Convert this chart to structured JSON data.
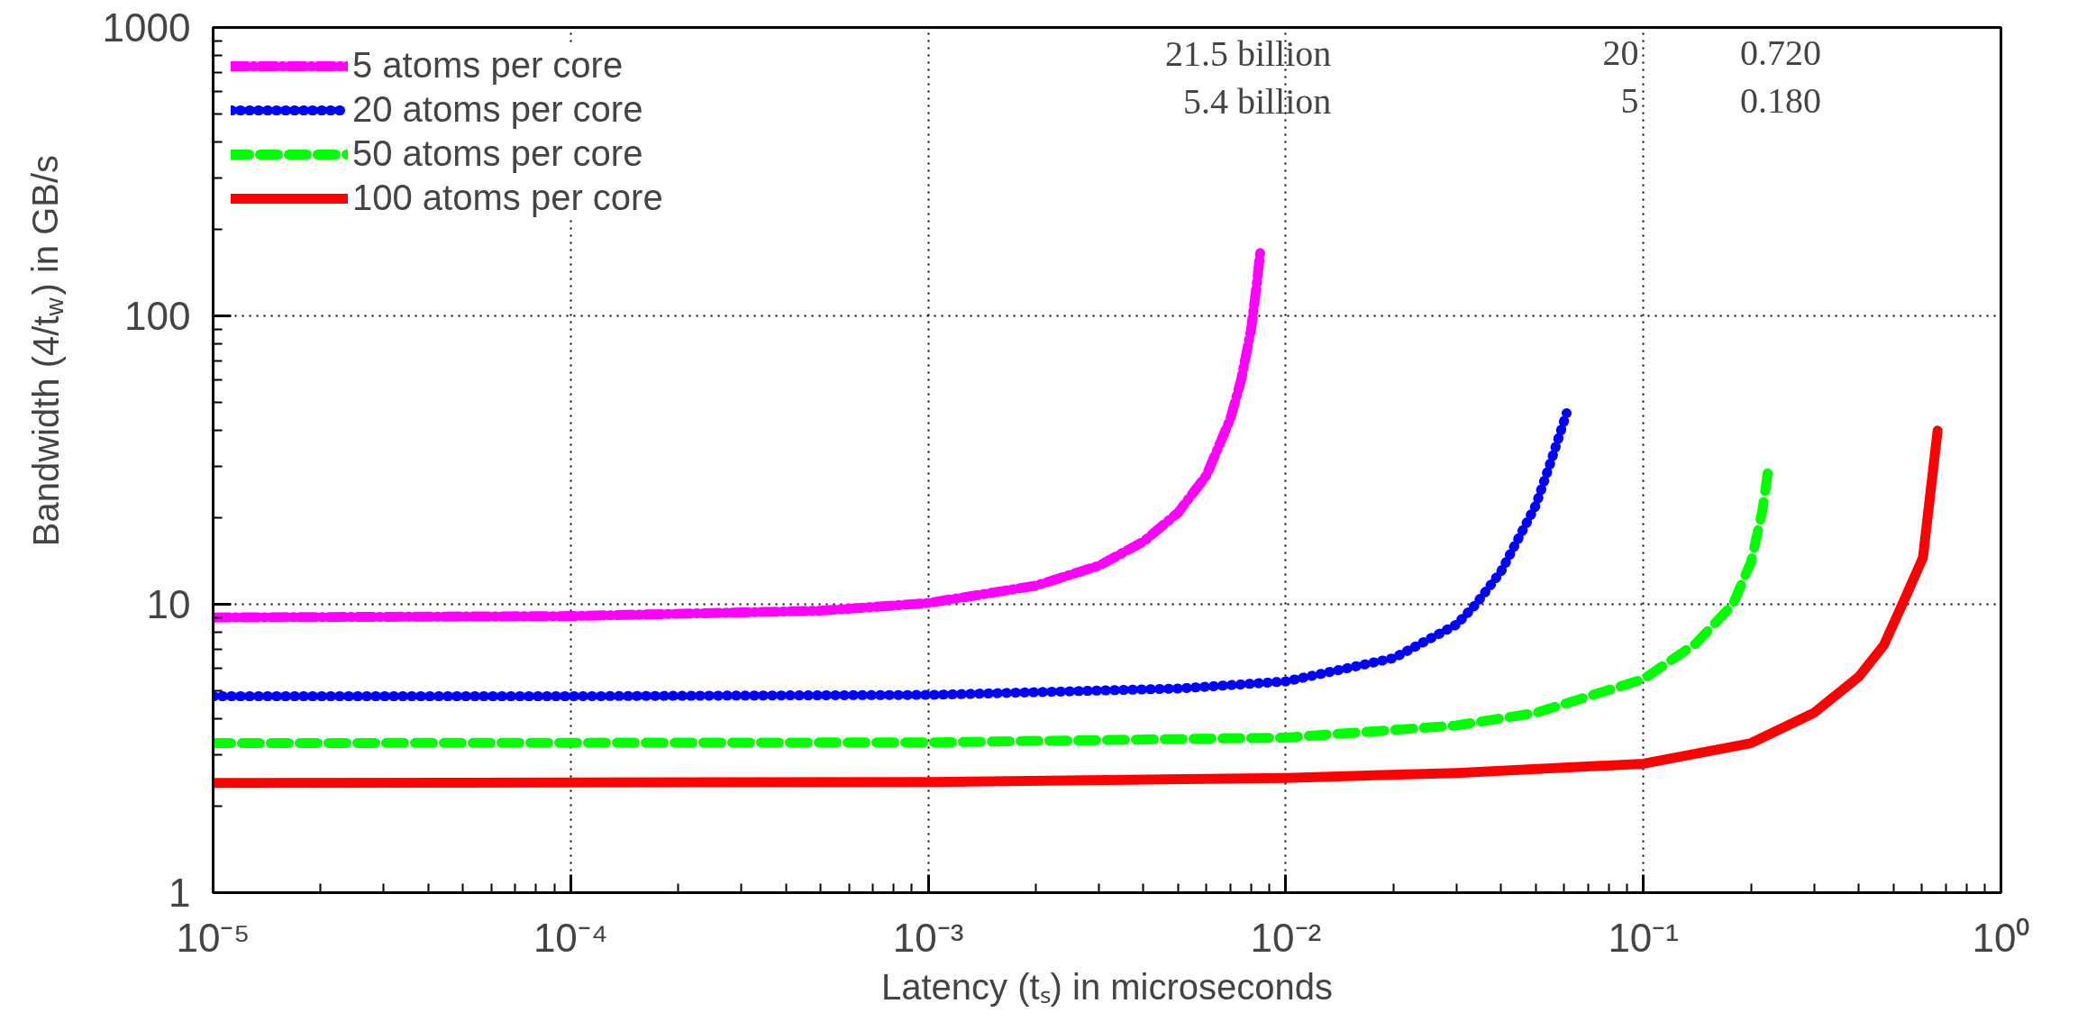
{
  "chart_data": {
    "type": "line",
    "xlabel": "Latency (tₛ) in microseconds",
    "ylabel": "Bandwidth (4/t$_{w}$) in GB/s",
    "log": "xy",
    "xlim": [
      1e-05,
      1
    ],
    "ylim": [
      1,
      1000
    ],
    "xticks": [
      {
        "value": 1e-05,
        "label": "10⁻⁵"
      },
      {
        "value": 0.0001,
        "label": "10⁻⁴"
      },
      {
        "value": 0.001,
        "label": "10⁻³"
      },
      {
        "value": 0.01,
        "label": "10⁻²"
      },
      {
        "value": 0.1,
        "label": "10⁻¹"
      },
      {
        "value": 1,
        "label": "10⁰"
      }
    ],
    "yticks": [
      1,
      10,
      100,
      1000
    ],
    "grid": true,
    "legend": "top left",
    "marker": "none",
    "annotations": [
      "21.5 billion",
      "20",
      "0.720",
      "5.4 billion",
      "5",
      "0.180"
    ],
    "series": [
      {
        "name": "5 atoms per core",
        "color": "#ff00ff",
        "line_style": "dashdot",
        "x": [
          1e-05,
          0.0001,
          0.0005,
          0.001,
          0.002,
          0.003,
          0.004,
          0.005,
          0.006,
          0.007,
          0.0075,
          0.008,
          0.0083,
          0.0085
        ],
        "values": [
          9,
          9.1,
          9.5,
          10.1,
          11.6,
          13.6,
          16.5,
          20.8,
          28,
          44,
          60,
          90,
          130,
          170
        ]
      },
      {
        "name": "20 atoms per core",
        "color": "#0000ff",
        "line_style": "dotted",
        "x": [
          1e-05,
          0.0001,
          0.001,
          0.005,
          0.01,
          0.02,
          0.03,
          0.034,
          0.04,
          0.05,
          0.055,
          0.061
        ],
        "values": [
          4.8,
          4.8,
          4.85,
          5.1,
          5.4,
          6.5,
          8.5,
          10,
          13,
          22,
          31,
          46
        ]
      },
      {
        "name": "50 atoms per core",
        "color": "#00ff00",
        "line_style": "dashed",
        "x": [
          1e-05,
          0.001,
          0.01,
          0.03,
          0.05,
          0.1,
          0.14,
          0.178,
          0.2,
          0.215,
          0.224
        ],
        "values": [
          3.3,
          3.32,
          3.45,
          3.8,
          4.2,
          5.5,
          7.3,
          10,
          14,
          21,
          30
        ]
      },
      {
        "name": "100 atoms per core",
        "color": "#ff0000",
        "line_style": "solid",
        "x": [
          1e-05,
          0.001,
          0.01,
          0.03,
          0.1,
          0.2,
          0.3,
          0.4,
          0.47,
          0.53,
          0.605,
          0.665
        ],
        "values": [
          2.4,
          2.42,
          2.5,
          2.6,
          2.8,
          3.3,
          4.2,
          5.6,
          7.2,
          10,
          14.5,
          40
        ]
      }
    ]
  }
}
